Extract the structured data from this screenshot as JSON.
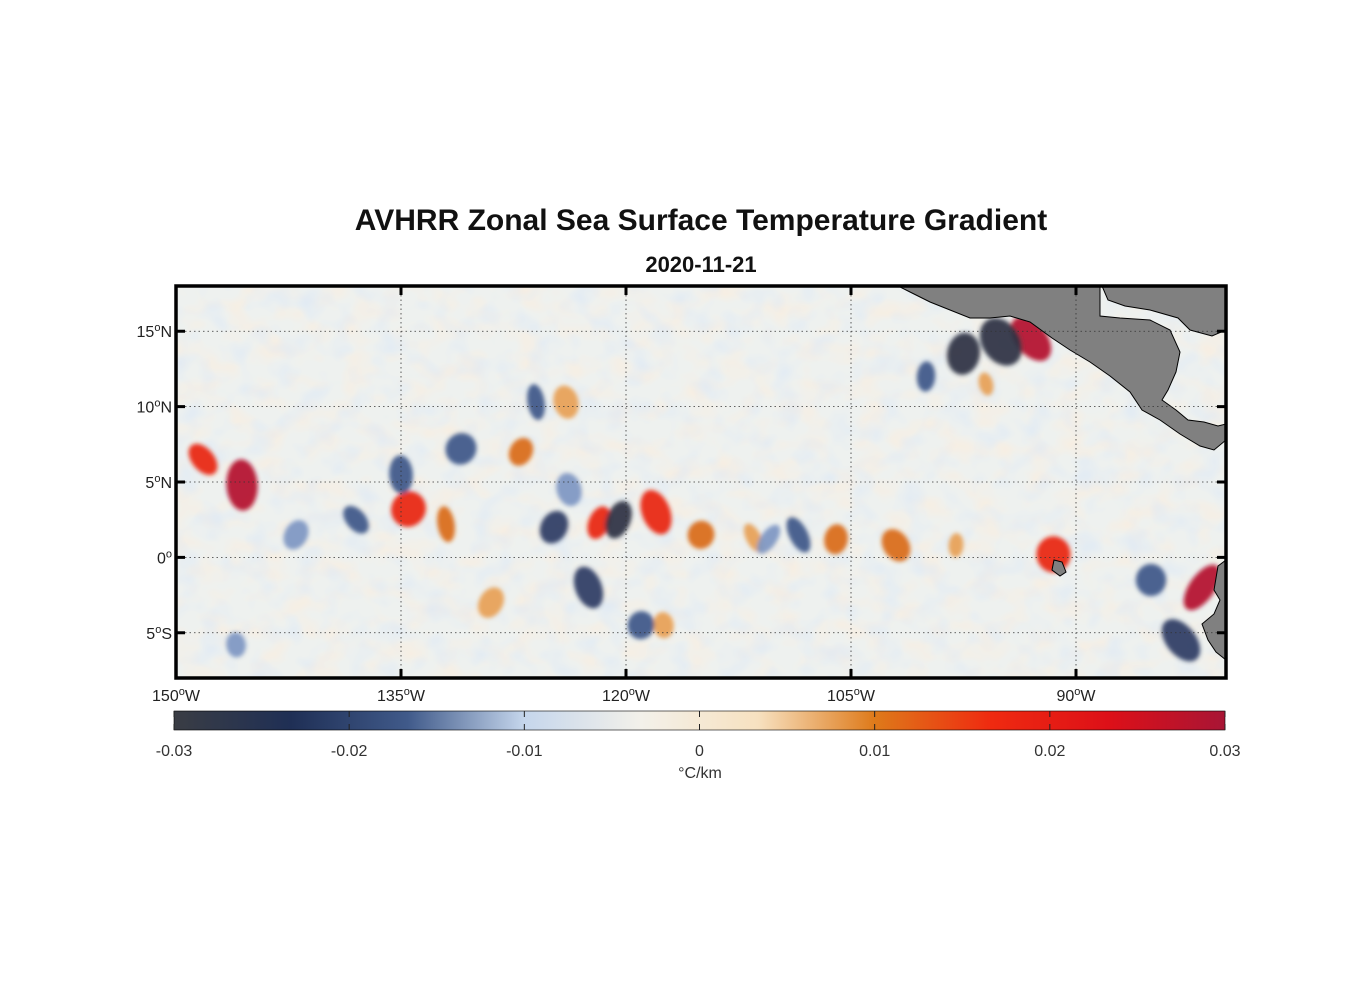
{
  "title": "AVHRR Zonal Sea Surface Temperature Gradient",
  "subtitle": "2020-11-21",
  "map": {
    "lon_range": [
      -150,
      -80
    ],
    "lat_range": [
      -8,
      18
    ],
    "lon_ticks": [
      {
        "value": -150,
        "label": "150°W"
      },
      {
        "value": -135,
        "label": "135°W"
      },
      {
        "value": -120,
        "label": "120°W"
      },
      {
        "value": -105,
        "label": "105°W"
      },
      {
        "value": -90,
        "label": "90°W"
      }
    ],
    "lat_ticks": [
      {
        "value": 15,
        "label": "15°N"
      },
      {
        "value": 10,
        "label": "10°N"
      },
      {
        "value": 5,
        "label": "5°N"
      },
      {
        "value": 0,
        "label": "0°"
      },
      {
        "value": -5,
        "label": "5°S"
      }
    ],
    "grid": true,
    "land_color": "#808080",
    "background_color": "#eef1ef"
  },
  "colorbar": {
    "ticks": [
      "-0.03",
      "-0.02",
      "-0.01",
      "0",
      "0.01",
      "0.02",
      "0.03"
    ],
    "unit": "°C/km",
    "colors": [
      "#3a3d44",
      "#1f2f55",
      "#405a8a",
      "#c5d6ec",
      "#f3f1ea",
      "#f7e1c0",
      "#de7a1a",
      "#ef2a10",
      "#dd1018",
      "#a81535"
    ]
  },
  "features": {
    "positive": [
      {
        "lon": -148.2,
        "lat": 6.5,
        "strength": 0.022
      },
      {
        "lon": -145.6,
        "lat": 4.8,
        "strength": 0.026
      },
      {
        "lon": -134.5,
        "lat": 3.2,
        "strength": 0.022
      },
      {
        "lon": -132.0,
        "lat": 2.2,
        "strength": 0.014
      },
      {
        "lon": -127.0,
        "lat": 7.0,
        "strength": 0.015
      },
      {
        "lon": -124.0,
        "lat": 10.3,
        "strength": 0.012
      },
      {
        "lon": -121.8,
        "lat": 2.3,
        "strength": 0.02
      },
      {
        "lon": -118.0,
        "lat": 3.0,
        "strength": 0.022
      },
      {
        "lon": -115.0,
        "lat": 1.5,
        "strength": 0.014
      },
      {
        "lon": -111.5,
        "lat": 1.3,
        "strength": 0.01
      },
      {
        "lon": -106.0,
        "lat": 1.2,
        "strength": 0.016
      },
      {
        "lon": -102.0,
        "lat": 0.8,
        "strength": 0.013
      },
      {
        "lon": -98.0,
        "lat": 0.8,
        "strength": 0.01
      },
      {
        "lon": -93.0,
        "lat": 14.5,
        "strength": 0.026
      },
      {
        "lon": -91.5,
        "lat": 0.2,
        "strength": 0.022
      },
      {
        "lon": -81.6,
        "lat": -2.0,
        "strength": 0.027
      },
      {
        "lon": -117.5,
        "lat": -4.5,
        "strength": 0.012
      },
      {
        "lon": -129.0,
        "lat": -3.0,
        "strength": 0.011
      },
      {
        "lon": -96.0,
        "lat": 11.5,
        "strength": 0.009
      }
    ],
    "negative": [
      {
        "lon": -138.0,
        "lat": 2.5,
        "strength": 0.018
      },
      {
        "lon": -135.0,
        "lat": 5.5,
        "strength": 0.016
      },
      {
        "lon": -131.0,
        "lat": 7.2,
        "strength": 0.018
      },
      {
        "lon": -126.0,
        "lat": 10.3,
        "strength": 0.014
      },
      {
        "lon": -124.8,
        "lat": 2.0,
        "strength": 0.02
      },
      {
        "lon": -123.8,
        "lat": 4.5,
        "strength": 0.012
      },
      {
        "lon": -120.5,
        "lat": 2.5,
        "strength": 0.025
      },
      {
        "lon": -122.5,
        "lat": -2.0,
        "strength": 0.02
      },
      {
        "lon": -119.0,
        "lat": -4.5,
        "strength": 0.014
      },
      {
        "lon": -108.5,
        "lat": 1.5,
        "strength": 0.016
      },
      {
        "lon": -97.5,
        "lat": 13.5,
        "strength": 0.028
      },
      {
        "lon": -95.0,
        "lat": 14.3,
        "strength": 0.026
      },
      {
        "lon": -100.0,
        "lat": 12.0,
        "strength": 0.016
      },
      {
        "lon": -83.0,
        "lat": -5.5,
        "strength": 0.024
      },
      {
        "lon": -85.0,
        "lat": -1.5,
        "strength": 0.018
      },
      {
        "lon": -110.5,
        "lat": 1.2,
        "strength": 0.012
      },
      {
        "lon": -146.0,
        "lat": -5.8,
        "strength": 0.011
      },
      {
        "lon": -142.0,
        "lat": 1.5,
        "strength": 0.01
      }
    ]
  }
}
